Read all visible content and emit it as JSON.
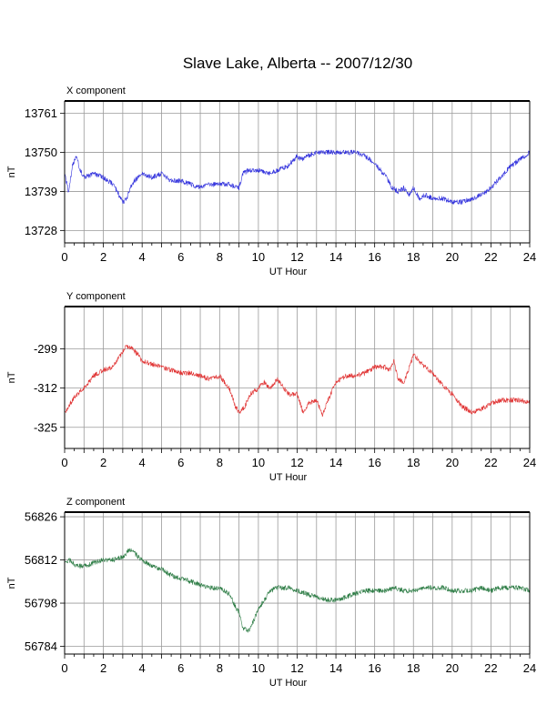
{
  "title": "Slave Lake, Alberta -- 2007/12/30",
  "colors": {
    "x": "#3333dd",
    "y": "#e03232",
    "z": "#2e7d46",
    "grid": "#9a9a9a",
    "axis": "#000000"
  },
  "chart_data": [
    {
      "type": "line",
      "panel_title": "X component",
      "xlabel": "UT Hour",
      "ylabel": "nT",
      "xlim": [
        0,
        24
      ],
      "ylim": [
        13724.5,
        13764.5
      ],
      "xticks": [
        0,
        2,
        4,
        6,
        8,
        10,
        12,
        14,
        16,
        18,
        20,
        22,
        24
      ],
      "yticks": [
        13728,
        13739,
        13750,
        13761
      ],
      "grid": true,
      "series": [
        {
          "color": "#3333dd",
          "x": [
            0,
            0.2,
            0.4,
            0.6,
            0.8,
            1.0,
            1.5,
            2.0,
            2.5,
            2.8,
            3.0,
            3.2,
            3.4,
            3.6,
            3.8,
            4.0,
            4.5,
            5.0,
            5.5,
            6.0,
            6.5,
            7.0,
            7.5,
            8.0,
            8.5,
            9.0,
            9.2,
            9.5,
            10.0,
            10.5,
            11.0,
            11.5,
            12.0,
            12.2,
            12.5,
            13.0,
            13.5,
            14.0,
            14.5,
            15.0,
            15.5,
            16.0,
            16.3,
            16.6,
            16.9,
            17.2,
            17.5,
            17.8,
            18.0,
            18.3,
            18.6,
            19.0,
            19.5,
            20.0,
            20.5,
            21.0,
            21.5,
            22.0,
            22.5,
            23.0,
            23.5,
            24.0
          ],
          "y": [
            13744,
            13739,
            13746,
            13749,
            13745,
            13743,
            13744,
            13743,
            13741,
            13738,
            13736,
            13737,
            13740,
            13742,
            13743,
            13744,
            13743,
            13744,
            13742,
            13742,
            13741,
            13740,
            13741,
            13741,
            13741,
            13740,
            13744,
            13745,
            13745,
            13744,
            13745,
            13746,
            13749,
            13748,
            13749,
            13750,
            13750,
            13750,
            13750,
            13750,
            13749,
            13747,
            13745,
            13743,
            13740,
            13739,
            13740,
            13738,
            13740,
            13737,
            13738,
            13737,
            13737,
            13736,
            13736,
            13737,
            13738,
            13740,
            13743,
            13746,
            13748,
            13750
          ]
        }
      ]
    },
    {
      "type": "line",
      "panel_title": "Y component",
      "xlabel": "UT Hour",
      "ylabel": "nT",
      "xlim": [
        0,
        24
      ],
      "ylim": [
        -332,
        -285
      ],
      "xticks": [
        0,
        2,
        4,
        6,
        8,
        10,
        12,
        14,
        16,
        18,
        20,
        22,
        24
      ],
      "yticks": [
        -299,
        -312,
        -325
      ],
      "grid": true,
      "series": [
        {
          "color": "#e03232",
          "x": [
            0,
            0.5,
            1.0,
            1.5,
            2.0,
            2.5,
            3.0,
            3.2,
            3.5,
            3.8,
            4.0,
            4.5,
            5.0,
            5.5,
            6.0,
            6.5,
            7.0,
            7.5,
            8.0,
            8.5,
            8.8,
            9.0,
            9.3,
            9.6,
            10.0,
            10.3,
            10.6,
            11.0,
            11.3,
            11.6,
            12.0,
            12.3,
            12.6,
            13.0,
            13.3,
            13.6,
            14.0,
            14.5,
            15.0,
            15.5,
            16.0,
            16.5,
            16.8,
            17.0,
            17.2,
            17.5,
            17.8,
            18.0,
            18.3,
            18.6,
            19.0,
            19.5,
            20.0,
            20.5,
            21.0,
            21.5,
            22.0,
            22.5,
            23.0,
            23.5,
            24.0
          ],
          "y": [
            -320,
            -315,
            -312,
            -308,
            -306,
            -305,
            -300,
            -298,
            -299,
            -301,
            -303,
            -304,
            -305,
            -306,
            -307,
            -307,
            -308,
            -309,
            -308,
            -312,
            -318,
            -320,
            -318,
            -314,
            -312,
            -310,
            -312,
            -309,
            -312,
            -314,
            -314,
            -320,
            -317,
            -316,
            -321,
            -316,
            -310,
            -308,
            -308,
            -307,
            -305,
            -305,
            -306,
            -303,
            -309,
            -310,
            -305,
            -301,
            -303,
            -305,
            -307,
            -311,
            -314,
            -318,
            -320,
            -319,
            -317,
            -316,
            -316,
            -316,
            -317
          ]
        }
      ]
    },
    {
      "type": "line",
      "panel_title": "Z component",
      "xlabel": "UT Hour",
      "ylabel": "nT",
      "xlim": [
        0,
        24
      ],
      "ylim": [
        56781.5,
        56827.5
      ],
      "xticks": [
        0,
        2,
        4,
        6,
        8,
        10,
        12,
        14,
        16,
        18,
        20,
        22,
        24
      ],
      "yticks": [
        56784,
        56798,
        56812,
        56826
      ],
      "grid": true,
      "series": [
        {
          "color": "#2e7d46",
          "x": [
            0,
            0.3,
            0.6,
            1.0,
            1.5,
            2.0,
            2.5,
            3.0,
            3.3,
            3.5,
            3.8,
            4.0,
            4.5,
            5.0,
            5.5,
            6.0,
            6.5,
            7.0,
            7.5,
            8.0,
            8.5,
            8.8,
            9.0,
            9.2,
            9.5,
            9.8,
            10.0,
            10.3,
            10.6,
            11.0,
            11.5,
            12.0,
            12.5,
            13.0,
            13.5,
            14.0,
            14.5,
            15.0,
            15.5,
            16.0,
            16.5,
            17.0,
            17.5,
            18.0,
            18.5,
            19.0,
            19.5,
            20.0,
            20.5,
            21.0,
            21.5,
            22.0,
            22.5,
            23.0,
            23.5,
            24.0
          ],
          "y": [
            56811,
            56812,
            56810,
            56810,
            56811,
            56812,
            56812,
            56813,
            56815,
            56815,
            56813,
            56812,
            56810,
            56809,
            56807,
            56806,
            56805,
            56804,
            56803,
            56803,
            56801,
            56797,
            56795,
            56790,
            56789,
            56793,
            56796,
            56799,
            56802,
            56803,
            56803,
            56802,
            56801,
            56800,
            56799,
            56799,
            56800,
            56801,
            56802,
            56802,
            56802,
            56803,
            56802,
            56802,
            56803,
            56803,
            56803,
            56802,
            56802,
            56802,
            56803,
            56802,
            56803,
            56803,
            56803,
            56802
          ]
        }
      ]
    }
  ]
}
